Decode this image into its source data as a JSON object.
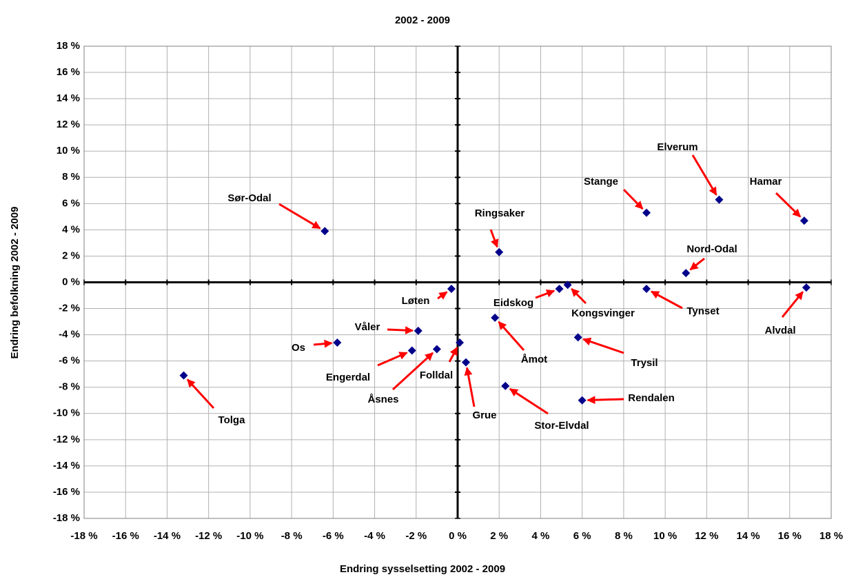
{
  "chart_data": {
    "type": "scatter",
    "title": "2002 - 2009",
    "xlabel": "Endring sysselsetting 2002 - 2009",
    "ylabel": "Endring befolkning 2002 - 2009",
    "point_labels": [
      "Sør-Odal",
      "Ringsaker",
      "Stange",
      "Elverum",
      "Hamar",
      "Nord-Odal",
      "Alvdal",
      "Tynset",
      "Kongsvinger",
      "Eidskog",
      "Løten",
      "Åmot",
      "Trysil",
      "Rendalen",
      "Stor-Elvdal",
      "Grue",
      "Folldal",
      "Åsnes",
      "Engerdal",
      "Våler",
      "Os",
      "Tolga"
    ],
    "x": [
      -6.4,
      2.0,
      9.1,
      12.6,
      16.7,
      11.0,
      16.8,
      9.1,
      5.3,
      4.9,
      -0.3,
      1.8,
      5.8,
      6.0,
      2.3,
      0.4,
      0.1,
      -1.0,
      -2.2,
      -1.9,
      -5.8,
      -13.2
    ],
    "values": [
      3.9,
      2.3,
      5.3,
      6.3,
      4.7,
      0.7,
      -0.4,
      -0.5,
      -0.2,
      -0.5,
      -0.5,
      -2.7,
      -4.2,
      -9.0,
      -7.9,
      -6.1,
      -4.6,
      -5.1,
      -5.2,
      -3.7,
      -4.6,
      -7.1
    ],
    "color": "#00008b",
    "arrow_color": "#ff0000",
    "grid": true,
    "xlim": [
      -18,
      18
    ],
    "ylim": [
      -18,
      18
    ],
    "xticks": [
      {
        "value": -18,
        "label": "-18 %"
      },
      {
        "value": -16,
        "label": "-16 %"
      },
      {
        "value": -14,
        "label": "-14 %"
      },
      {
        "value": -12,
        "label": "-12 %"
      },
      {
        "value": -10,
        "label": "-10 %"
      },
      {
        "value": -8,
        "label": "-8 %"
      },
      {
        "value": -6,
        "label": "-6 %"
      },
      {
        "value": -4,
        "label": "-4 %"
      },
      {
        "value": -2,
        "label": "-2 %"
      },
      {
        "value": 0,
        "label": "0 %"
      },
      {
        "value": 2,
        "label": "2 %"
      },
      {
        "value": 4,
        "label": "4 %"
      },
      {
        "value": 6,
        "label": "6 %"
      },
      {
        "value": 8,
        "label": "8 %"
      },
      {
        "value": 10,
        "label": "10 %"
      },
      {
        "value": 12,
        "label": "12 %"
      },
      {
        "value": 14,
        "label": "14 %"
      },
      {
        "value": 16,
        "label": "16 %"
      },
      {
        "value": 18,
        "label": "18 %"
      }
    ],
    "yticks": [
      {
        "value": -18,
        "label": "-18 %"
      },
      {
        "value": -16,
        "label": "-16 %"
      },
      {
        "value": -14,
        "label": "-14 %"
      },
      {
        "value": -12,
        "label": "-12 %"
      },
      {
        "value": -10,
        "label": "-10 %"
      },
      {
        "value": -8,
        "label": "-8 %"
      },
      {
        "value": -6,
        "label": "-6 %"
      },
      {
        "value": -4,
        "label": "-4 %"
      },
      {
        "value": -2,
        "label": "-2 %"
      },
      {
        "value": 0,
        "label": "0 %"
      },
      {
        "value": 2,
        "label": "2 %"
      },
      {
        "value": 4,
        "label": "4 %"
      },
      {
        "value": 6,
        "label": "6 %"
      },
      {
        "value": 8,
        "label": "8 %"
      },
      {
        "value": 10,
        "label": "10 %"
      },
      {
        "value": 12,
        "label": "12 %"
      },
      {
        "value": 14,
        "label": "14 %"
      },
      {
        "value": 16,
        "label": "16 %"
      },
      {
        "value": 18,
        "label": "18 %"
      }
    ]
  }
}
